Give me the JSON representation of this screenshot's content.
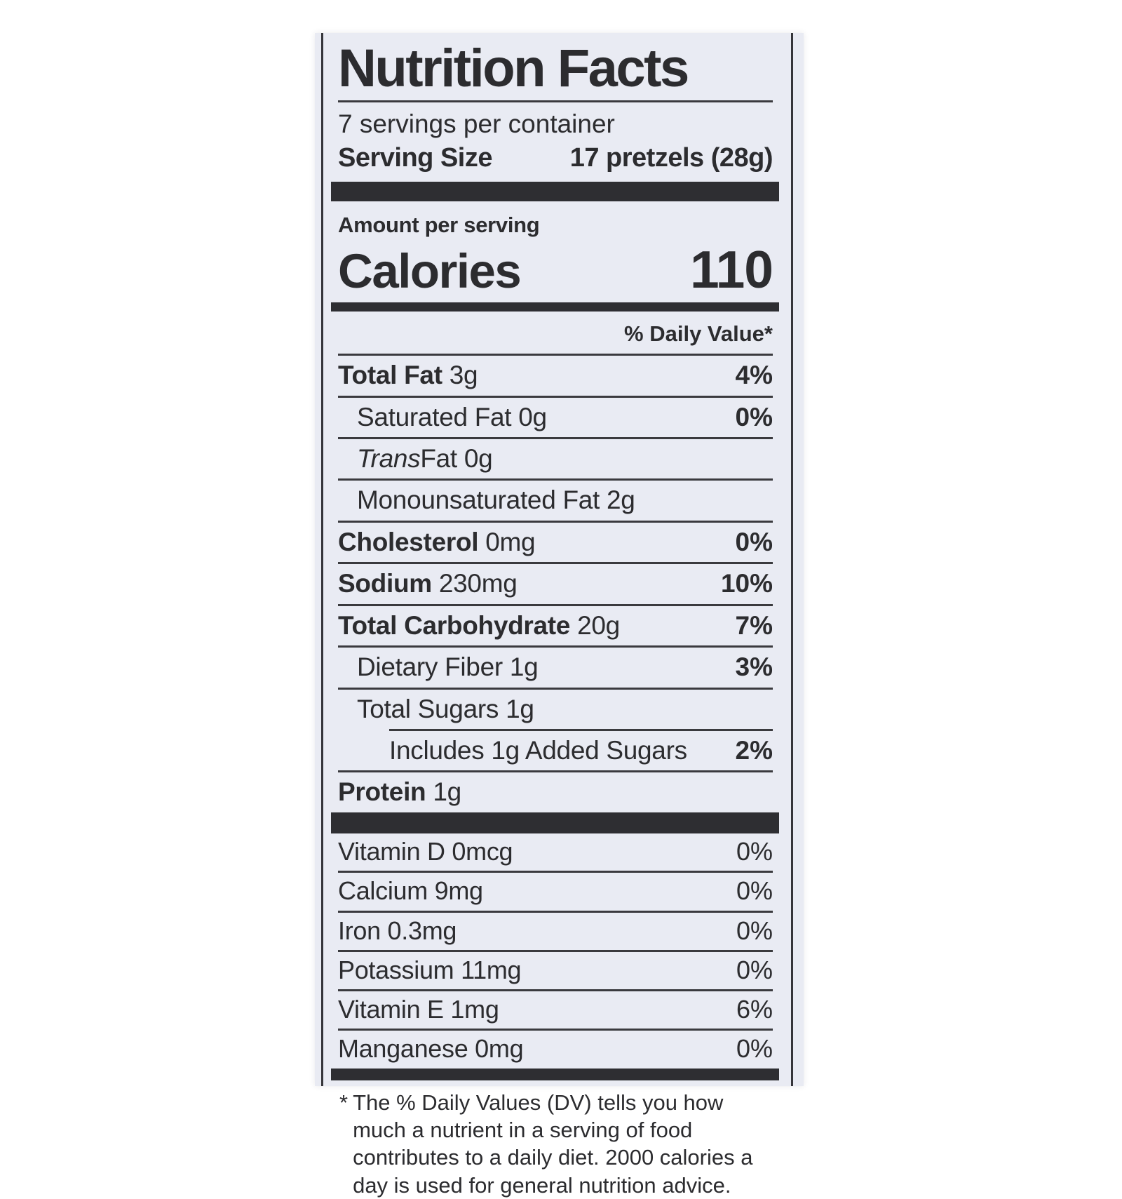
{
  "colors": {
    "page_background": "#ffffff",
    "label_background": "#e9ebf3",
    "text": "#2c2c2f",
    "bars_and_rules": "#2e2e32"
  },
  "label": {
    "title": "Nutrition Facts",
    "servings_per_container": "7 servings per container",
    "serving_size_label": "Serving Size",
    "serving_size_value": "17 pretzels (28g)",
    "amount_per_serving": "Amount per serving",
    "calories_label": "Calories",
    "calories_value": "110",
    "daily_value_header": "% Daily Value*",
    "nutrients": [
      {
        "label": "Total Fat",
        "amount": "3g",
        "dv": "4%"
      },
      {
        "label": "Saturated Fat",
        "amount": "0g",
        "dv": "0%"
      },
      {
        "label_italic": "Trans",
        "label": "Fat",
        "amount": "0g",
        "dv": ""
      },
      {
        "label": "Monounsaturated Fat",
        "amount": "2g",
        "dv": ""
      },
      {
        "label": "Cholesterol",
        "amount": "0mg",
        "dv": "0%"
      },
      {
        "label": "Sodium",
        "amount": "230mg",
        "dv": "10%"
      },
      {
        "label": "Total Carbohydrate",
        "amount": "20g",
        "dv": "7%"
      },
      {
        "label": "Dietary Fiber",
        "amount": "1g",
        "dv": "3%"
      },
      {
        "label": "Total Sugars",
        "amount": "1g",
        "dv": ""
      },
      {
        "label": "Includes 1g Added Sugars",
        "amount": "",
        "dv": "2%"
      },
      {
        "label": "Protein",
        "amount": "1g",
        "dv": ""
      }
    ],
    "micronutrients": [
      {
        "label": "Vitamin D",
        "amount": "0mcg",
        "dv": "0%"
      },
      {
        "label": "Calcium",
        "amount": "9mg",
        "dv": "0%"
      },
      {
        "label": "Iron",
        "amount": "0.3mg",
        "dv": "0%"
      },
      {
        "label": "Potassium",
        "amount": "11mg",
        "dv": "0%"
      },
      {
        "label": "Vitamin E",
        "amount": "1mg",
        "dv": "6%"
      },
      {
        "label": "Manganese",
        "amount": "0mg",
        "dv": "0%"
      }
    ],
    "footnote_marker": "*",
    "footnote": "The % Daily Values (DV) tells you how much a nutrient in a serving of food contributes to a daily diet. 2000 calories a day is used for general nutrition advice."
  }
}
